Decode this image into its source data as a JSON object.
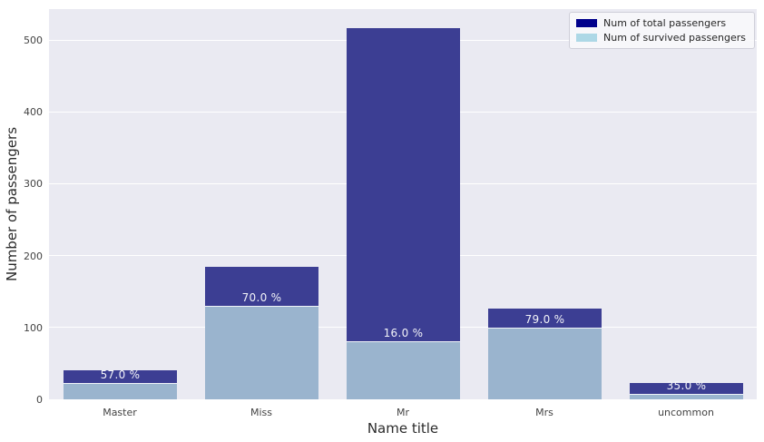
{
  "chart_data": {
    "type": "bar",
    "title": "",
    "xlabel": "Name title",
    "ylabel": "Number of passengers",
    "categories": [
      "Master",
      "Miss",
      "Mr",
      "Mrs",
      "uncommon"
    ],
    "series": [
      {
        "name": "Num of total passengers",
        "legend_color": "#00008b",
        "bar_color": "#3c3e93",
        "values": [
          40,
          185,
          517,
          126,
          23
        ]
      },
      {
        "name": "Num of survived passengers",
        "legend_color": "#add8e6",
        "bar_color": "#9ab4ce",
        "values": [
          23,
          130,
          81,
          100,
          8
        ]
      }
    ],
    "bar_labels": [
      "57.0 %",
      "70.0 %",
      "16.0 %",
      "79.0 %",
      "35.0 %"
    ],
    "yticks": [
      0,
      100,
      200,
      300,
      400,
      500
    ],
    "ylim": [
      0,
      543
    ],
    "grid": true,
    "legend_position": "upper right",
    "plot_background": "#eaeaf2",
    "grid_color": "#ffffff",
    "bar_label_color": "#f2f3f8"
  }
}
